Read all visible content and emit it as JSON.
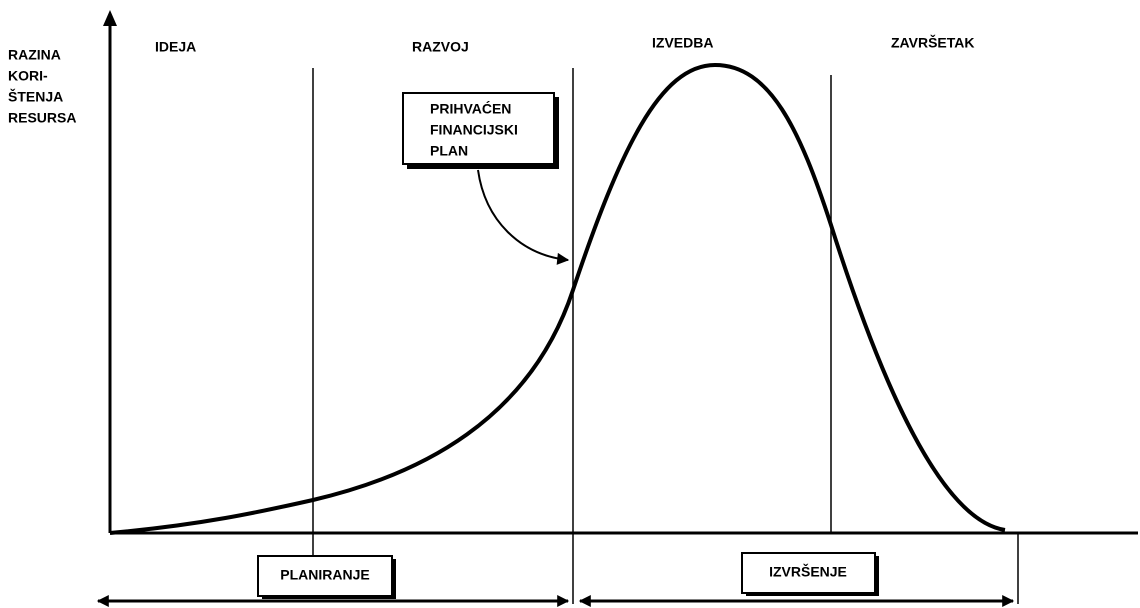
{
  "y_axis_label": [
    "RAZINA",
    "KORI-",
    "ŠTENJA",
    "RESURSA"
  ],
  "phases": [
    "IDEJA",
    "RAZVOJ",
    "IZVEDBA",
    "ZAVRŠETAK"
  ],
  "callout": [
    "PRIHVAĆEN",
    "FINANCIJSKI",
    "PLAN"
  ],
  "bottom_labels": [
    "PLANIRANJE",
    "IZVRŠENJE"
  ]
}
